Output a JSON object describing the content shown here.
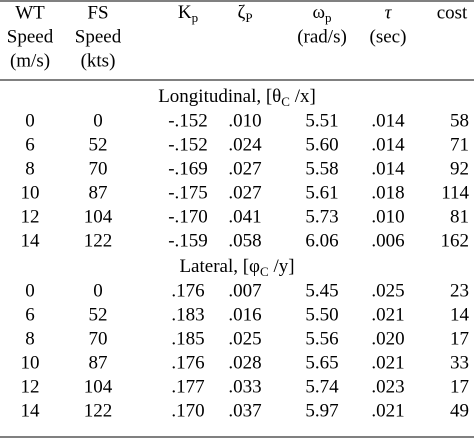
{
  "table": {
    "header": {
      "wt": [
        "WT",
        "Speed",
        "(m/s)"
      ],
      "fs": [
        "FS",
        "Speed",
        "(kts)"
      ],
      "kp": {
        "base": "K",
        "sub": "p"
      },
      "zeta": {
        "base": "ζ",
        "sub": "P"
      },
      "omega": {
        "base": "ω",
        "sub": "p",
        "unit": "(rad/s)"
      },
      "tau": {
        "base": "τ",
        "unit": "(sec)"
      },
      "cost": "cost"
    },
    "sections": [
      {
        "label": {
          "prefix": "Longitudinal, [θ",
          "sub": "C",
          "suffix": " /x]"
        },
        "rows": [
          [
            "0",
            "0",
            "-.152",
            ".010",
            "5.51",
            ".014",
            "58"
          ],
          [
            "6",
            "52",
            "-.152",
            ".024",
            "5.60",
            ".014",
            "71"
          ],
          [
            "8",
            "70",
            "-.169",
            ".027",
            "5.58",
            ".014",
            "92"
          ],
          [
            "10",
            "87",
            "-.175",
            ".027",
            "5.61",
            ".018",
            "114"
          ],
          [
            "12",
            "104",
            "-.170",
            ".041",
            "5.73",
            ".010",
            "81"
          ],
          [
            "14",
            "122",
            "-.159",
            ".058",
            "6.06",
            ".006",
            "162"
          ]
        ]
      },
      {
        "label": {
          "prefix": "Lateral, [φ",
          "sub": "C",
          "suffix": " /y]"
        },
        "rows": [
          [
            "0",
            "0",
            ".176",
            ".007",
            "5.45",
            ".025",
            "23"
          ],
          [
            "6",
            "52",
            ".183",
            ".016",
            "5.50",
            ".021",
            "14"
          ],
          [
            "8",
            "70",
            ".185",
            ".025",
            "5.56",
            ".020",
            "17"
          ],
          [
            "10",
            "87",
            ".176",
            ".028",
            "5.65",
            ".021",
            "33"
          ],
          [
            "12",
            "104",
            ".177",
            ".033",
            "5.74",
            ".023",
            "17"
          ],
          [
            "14",
            "122",
            ".170",
            ".037",
            "5.97",
            ".021",
            "49"
          ]
        ]
      }
    ]
  }
}
